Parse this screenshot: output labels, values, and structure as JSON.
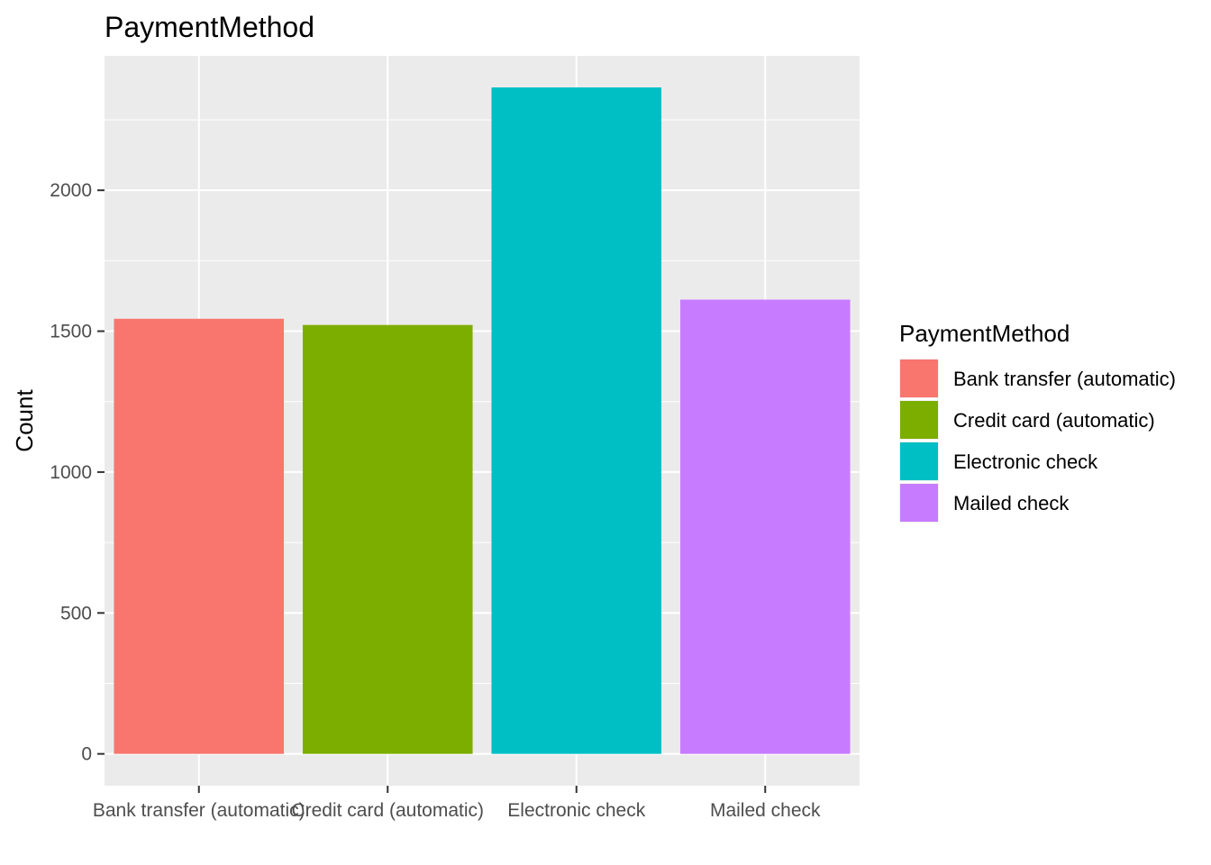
{
  "chart_data": {
    "type": "bar",
    "title": "PaymentMethod",
    "xlabel": "",
    "ylabel": "Count",
    "categories": [
      "Bank transfer (automatic)",
      "Credit card (automatic)",
      "Electronic check",
      "Mailed check"
    ],
    "values": [
      1544,
      1522,
      2365,
      1612
    ],
    "colors": [
      "#F8766D",
      "#7CAE00",
      "#00BFC4",
      "#C77CFF"
    ],
    "ylim": [
      -113,
      2477
    ],
    "yticks": [
      0,
      500,
      1000,
      1500,
      2000
    ],
    "grid": true,
    "panel_background": "#EBEBEB",
    "legend": {
      "title": "PaymentMethod",
      "position": "right",
      "entries": [
        "Bank transfer (automatic)",
        "Credit card (automatic)",
        "Electronic check",
        "Mailed check"
      ]
    }
  }
}
